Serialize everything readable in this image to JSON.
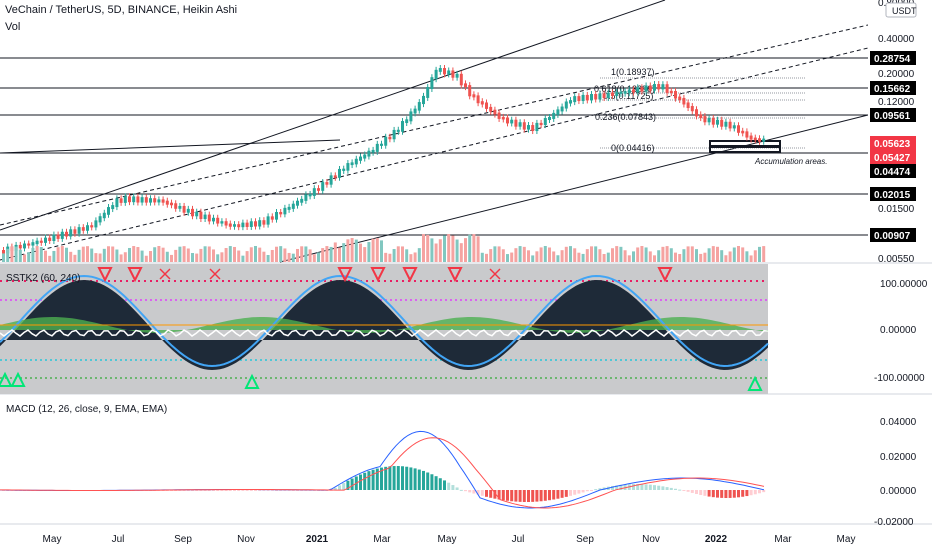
{
  "header": {
    "symbol_line": "VeChain / TetherUS, 5D, BINANCE, Heikin Ashi",
    "vol_label": "Vol",
    "currency_btn": "USDT"
  },
  "main_axis": {
    "ticks": [
      "0.80000",
      "0.40000",
      "0.20000",
      "0.12000",
      "0.02015",
      "0.01500",
      "0.00550"
    ]
  },
  "price_tags": [
    {
      "label": "0.28754",
      "color": "#000000"
    },
    {
      "label": "0.15662",
      "color": "#000000"
    },
    {
      "label": "0.09561",
      "color": "#000000"
    },
    {
      "label": "0.05623",
      "color": "#f23645"
    },
    {
      "label": "0.05427",
      "color": "#f23645"
    },
    {
      "label": "0.04474",
      "color": "#000000"
    },
    {
      "label": "0.02015",
      "color": "#000000"
    },
    {
      "label": "0.00907",
      "color": "#000000"
    }
  ],
  "fib_labels": [
    "1(0.18937)",
    "0.618(0.13396)",
    "0.5(0.11725)",
    "0.236(0.07843)",
    "0(0.04416)"
  ],
  "annotation": "Accumulation areas.",
  "sstk": {
    "label": "SSTK2 (60, 240)",
    "ticks": [
      "100.00000",
      "0.00000",
      "-100.00000"
    ]
  },
  "macd": {
    "label": "MACD (12, 26, close, 9, EMA, EMA)",
    "ticks": [
      "0.04000",
      "0.02000",
      "0.00000",
      "-0.02000"
    ]
  },
  "time_axis": [
    "May",
    "Jul",
    "Sep",
    "Nov",
    "2021",
    "Mar",
    "May",
    "Jul",
    "Sep",
    "Nov",
    "2022",
    "Mar",
    "May"
  ],
  "time_axis_bold": [
    "2021",
    "2022"
  ],
  "colors": {
    "up": "#26a69a",
    "down": "#ef5350",
    "macd_line": "#2962ff",
    "signal_line": "#ff5252"
  }
}
